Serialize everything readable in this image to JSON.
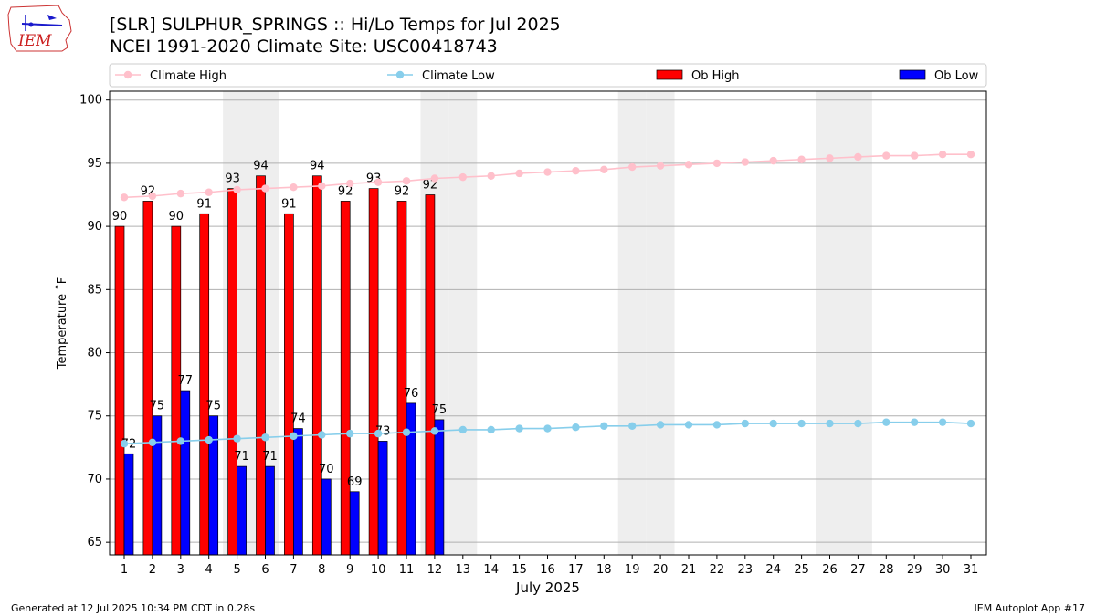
{
  "header": {
    "title_line1": "[SLR] SULPHUR_SPRINGS :: Hi/Lo Temps for Jul 2025",
    "title_line2": "NCEI 1991-2020 Climate Site: USC00418743",
    "logo_text": "IEM"
  },
  "footer": {
    "generated": "Generated at 12 Jul 2025 10:34 PM CDT in 0.28s",
    "app": "IEM Autoplot App #17"
  },
  "chart_data": {
    "type": "bar",
    "xlabel": "July 2025",
    "ylabel": "Temperature ˚F",
    "ylim": [
      64,
      100.7
    ],
    "yticks": [
      65,
      70,
      75,
      80,
      85,
      90,
      95,
      100
    ],
    "days": [
      1,
      2,
      3,
      4,
      5,
      6,
      7,
      8,
      9,
      10,
      11,
      12,
      13,
      14,
      15,
      16,
      17,
      18,
      19,
      20,
      21,
      22,
      23,
      24,
      25,
      26,
      27,
      28,
      29,
      30,
      31
    ],
    "weekend_days": [
      5,
      6,
      12,
      13,
      19,
      20,
      26,
      27
    ],
    "grid": "y",
    "legend_position": "top",
    "series": [
      {
        "name": "Ob High",
        "color": "#ff0000",
        "kind": "bar",
        "values": [
          90,
          92,
          90,
          91,
          93,
          94,
          91,
          94,
          92,
          93,
          92,
          92.5
        ],
        "labels": [
          "90",
          "92",
          "90",
          "91",
          "93",
          "94",
          "91",
          "94",
          "92",
          "93",
          "92",
          "92"
        ]
      },
      {
        "name": "Ob Low",
        "color": "#0000ff",
        "kind": "bar",
        "values": [
          72,
          75,
          77,
          75,
          71,
          71,
          74,
          70,
          69,
          73,
          76,
          74.7
        ],
        "labels": [
          "72",
          "75",
          "77",
          "75",
          "71",
          "71",
          "74",
          "70",
          "69",
          "73",
          "76",
          "75"
        ]
      },
      {
        "name": "Climate High",
        "color": "#ffc0cb",
        "kind": "line",
        "values": [
          92.3,
          92.4,
          92.6,
          92.7,
          92.9,
          93.0,
          93.1,
          93.2,
          93.4,
          93.5,
          93.6,
          93.8,
          93.9,
          94.0,
          94.2,
          94.3,
          94.4,
          94.5,
          94.7,
          94.8,
          94.9,
          95.0,
          95.1,
          95.2,
          95.3,
          95.4,
          95.5,
          95.6,
          95.6,
          95.7,
          95.7
        ]
      },
      {
        "name": "Climate Low",
        "color": "#87ceeb",
        "kind": "line",
        "values": [
          72.8,
          72.9,
          73.0,
          73.1,
          73.2,
          73.3,
          73.4,
          73.5,
          73.6,
          73.6,
          73.7,
          73.8,
          73.9,
          73.9,
          74.0,
          74.0,
          74.1,
          74.2,
          74.2,
          74.3,
          74.3,
          74.3,
          74.4,
          74.4,
          74.4,
          74.4,
          74.4,
          74.5,
          74.5,
          74.5,
          74.4
        ]
      }
    ]
  }
}
